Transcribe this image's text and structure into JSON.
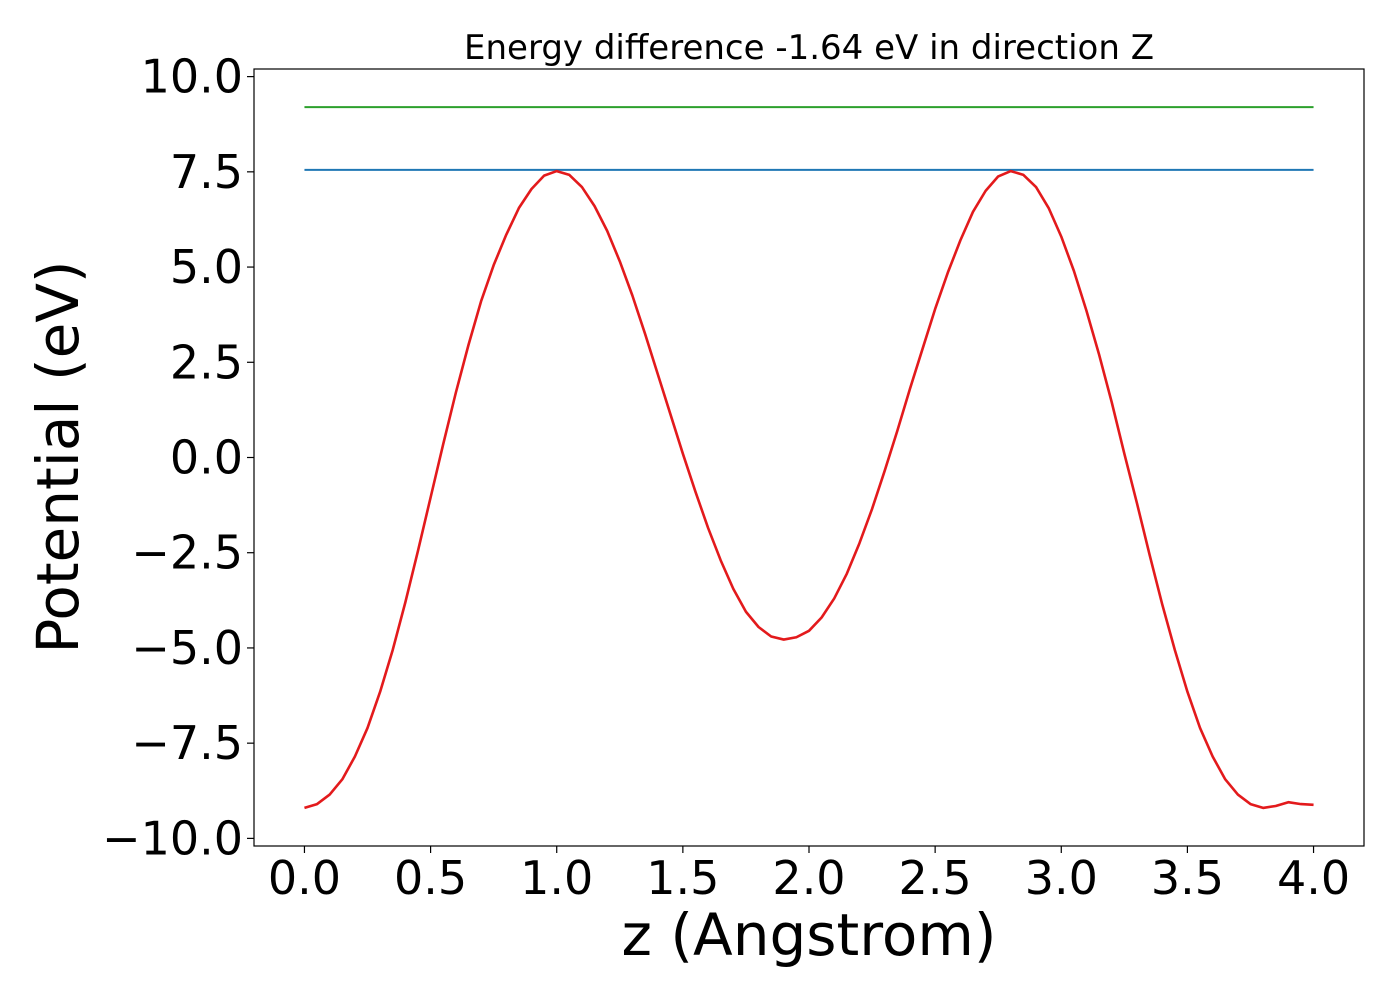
{
  "chart_data": {
    "type": "line",
    "title": "Energy difference -1.64 eV in direction Z",
    "xlabel": "z (Angstrom)",
    "ylabel": "Potential (eV)",
    "xlim": [
      -0.2,
      4.2
    ],
    "ylim": [
      -10.2,
      10.2
    ],
    "xticks": [
      0.0,
      0.5,
      1.0,
      1.5,
      2.0,
      2.5,
      3.0,
      3.5,
      4.0
    ],
    "xtick_labels": [
      "0.0",
      "0.5",
      "1.0",
      "1.5",
      "2.0",
      "2.5",
      "3.0",
      "3.5",
      "4.0"
    ],
    "yticks": [
      10.0,
      7.5,
      5.0,
      2.5,
      0.0,
      -2.5,
      -5.0,
      -7.5,
      -10.0
    ],
    "ytick_labels": [
      "10.0",
      "7.5",
      "5.0",
      "2.5",
      "0.0",
      "−2.5",
      "−5.0",
      "−7.5",
      "−10.0"
    ],
    "grid": false,
    "series": [
      {
        "color": "#2ca02c",
        "x": [
          0.0,
          4.0
        ],
        "y": [
          9.2,
          9.2
        ]
      },
      {
        "color": "#1f77b4",
        "x": [
          0.0,
          4.0
        ],
        "y": [
          7.55,
          7.55
        ]
      },
      {
        "color": "#e31a1c",
        "x": [
          0.0,
          0.05,
          0.1,
          0.15,
          0.2,
          0.25,
          0.3,
          0.35,
          0.4,
          0.45,
          0.5,
          0.55,
          0.6,
          0.65,
          0.7,
          0.75,
          0.8,
          0.85,
          0.9,
          0.95,
          1.0,
          1.05,
          1.1,
          1.15,
          1.2,
          1.25,
          1.3,
          1.35,
          1.4,
          1.45,
          1.5,
          1.55,
          1.6,
          1.65,
          1.7,
          1.75,
          1.8,
          1.85,
          1.9,
          1.95,
          2.0,
          2.05,
          2.1,
          2.15,
          2.2,
          2.25,
          2.3,
          2.35,
          2.4,
          2.45,
          2.5,
          2.55,
          2.6,
          2.65,
          2.7,
          2.75,
          2.8,
          2.85,
          2.9,
          2.95,
          3.0,
          3.05,
          3.1,
          3.15,
          3.2,
          3.25,
          3.3,
          3.35,
          3.4,
          3.45,
          3.5,
          3.55,
          3.6,
          3.65,
          3.7,
          3.75,
          3.8,
          3.85,
          3.9,
          3.95,
          4.0
        ],
        "y": [
          -9.2,
          -9.1,
          -8.85,
          -8.45,
          -7.85,
          -7.1,
          -6.15,
          -5.05,
          -3.8,
          -2.45,
          -1.05,
          0.35,
          1.7,
          2.95,
          4.1,
          5.05,
          5.85,
          6.55,
          7.05,
          7.4,
          7.52,
          7.42,
          7.1,
          6.6,
          5.95,
          5.15,
          4.25,
          3.25,
          2.2,
          1.15,
          0.1,
          -0.9,
          -1.85,
          -2.7,
          -3.45,
          -4.05,
          -4.45,
          -4.7,
          -4.78,
          -4.72,
          -4.55,
          -4.2,
          -3.7,
          -3.05,
          -2.25,
          -1.35,
          -0.35,
          0.7,
          1.8,
          2.85,
          3.9,
          4.85,
          5.7,
          6.45,
          7.0,
          7.38,
          7.52,
          7.42,
          7.1,
          6.55,
          5.8,
          4.9,
          3.85,
          2.7,
          1.45,
          0.1,
          -1.2,
          -2.55,
          -3.85,
          -5.05,
          -6.15,
          -7.1,
          -7.85,
          -8.45,
          -8.85,
          -9.1,
          -9.2,
          -9.15,
          -9.05,
          -9.1,
          -9.12
        ]
      }
    ]
  }
}
